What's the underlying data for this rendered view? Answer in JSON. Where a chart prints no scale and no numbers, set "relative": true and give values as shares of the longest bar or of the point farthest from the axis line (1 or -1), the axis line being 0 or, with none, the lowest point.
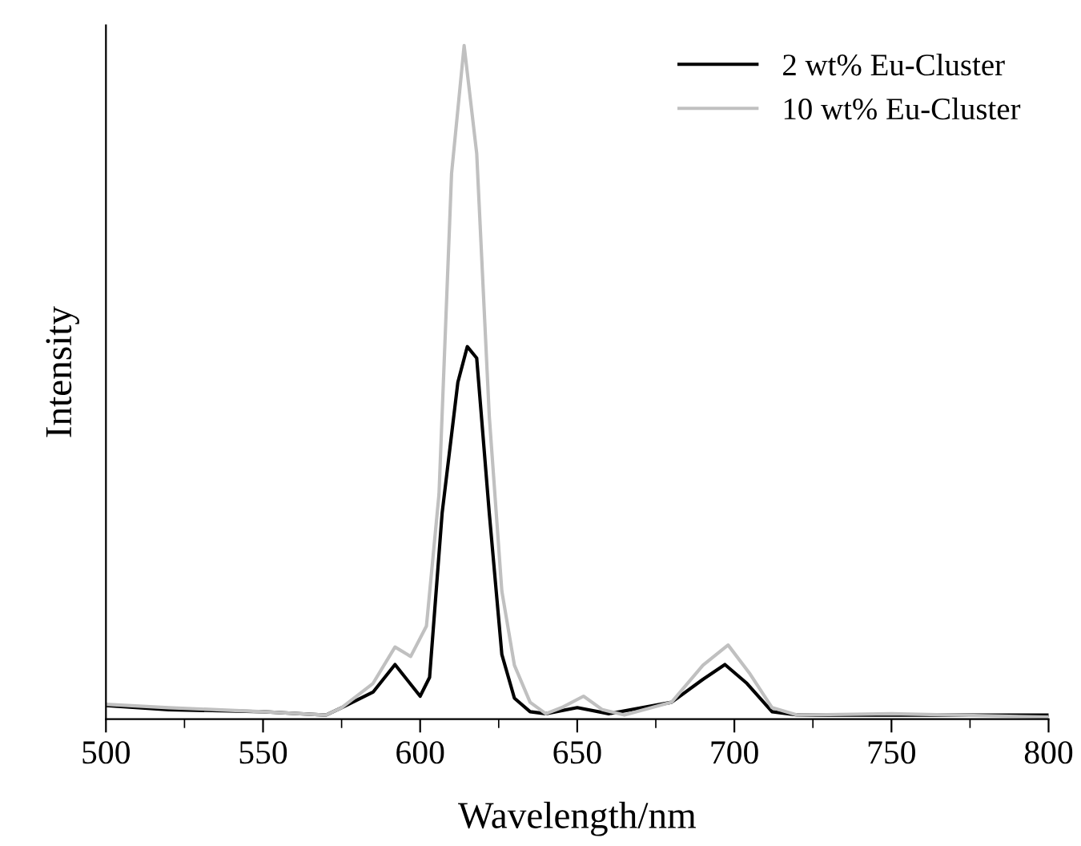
{
  "chart_data": {
    "type": "line",
    "relative": true,
    "xlabel": "Wavelength/nm",
    "ylabel": "Intensity",
    "xlim": [
      500,
      800
    ],
    "xticks": [
      500,
      550,
      600,
      650,
      700,
      750,
      800
    ],
    "legend": "top right",
    "grid": false,
    "series": [
      {
        "name": "2 wt% Eu-Cluster",
        "color": "#000000",
        "x": [
          500,
          520,
          550,
          570,
          575,
          585,
          592,
          600,
          603,
          607,
          612,
          615,
          618,
          622,
          626,
          630,
          635,
          640,
          650,
          660,
          680,
          690,
          697,
          704,
          712,
          720,
          750,
          800
        ],
        "values": [
          0.02,
          0.014,
          0.011,
          0.006,
          0.017,
          0.04,
          0.081,
          0.034,
          0.062,
          0.306,
          0.5,
          0.553,
          0.536,
          0.306,
          0.096,
          0.031,
          0.011,
          0.008,
          0.017,
          0.008,
          0.025,
          0.059,
          0.081,
          0.053,
          0.011,
          0.006,
          0.006,
          0.006
        ]
      },
      {
        "name": "10 wt% Eu-Cluster",
        "color": "#c0c0c0",
        "x": [
          500,
          520,
          550,
          570,
          575,
          585,
          592,
          597,
          602,
          606,
          610,
          614,
          618,
          622,
          626,
          630,
          635,
          640,
          645,
          652,
          658,
          665,
          680,
          690,
          698,
          705,
          712,
          720,
          750,
          800
        ],
        "values": [
          0.022,
          0.017,
          0.011,
          0.006,
          0.017,
          0.053,
          0.107,
          0.093,
          0.138,
          0.334,
          0.81,
          1,
          0.84,
          0.45,
          0.19,
          0.08,
          0.025,
          0.008,
          0.017,
          0.034,
          0.014,
          0.006,
          0.025,
          0.08,
          0.11,
          0.067,
          0.017,
          0.006,
          0.008,
          0.003
        ]
      }
    ]
  }
}
